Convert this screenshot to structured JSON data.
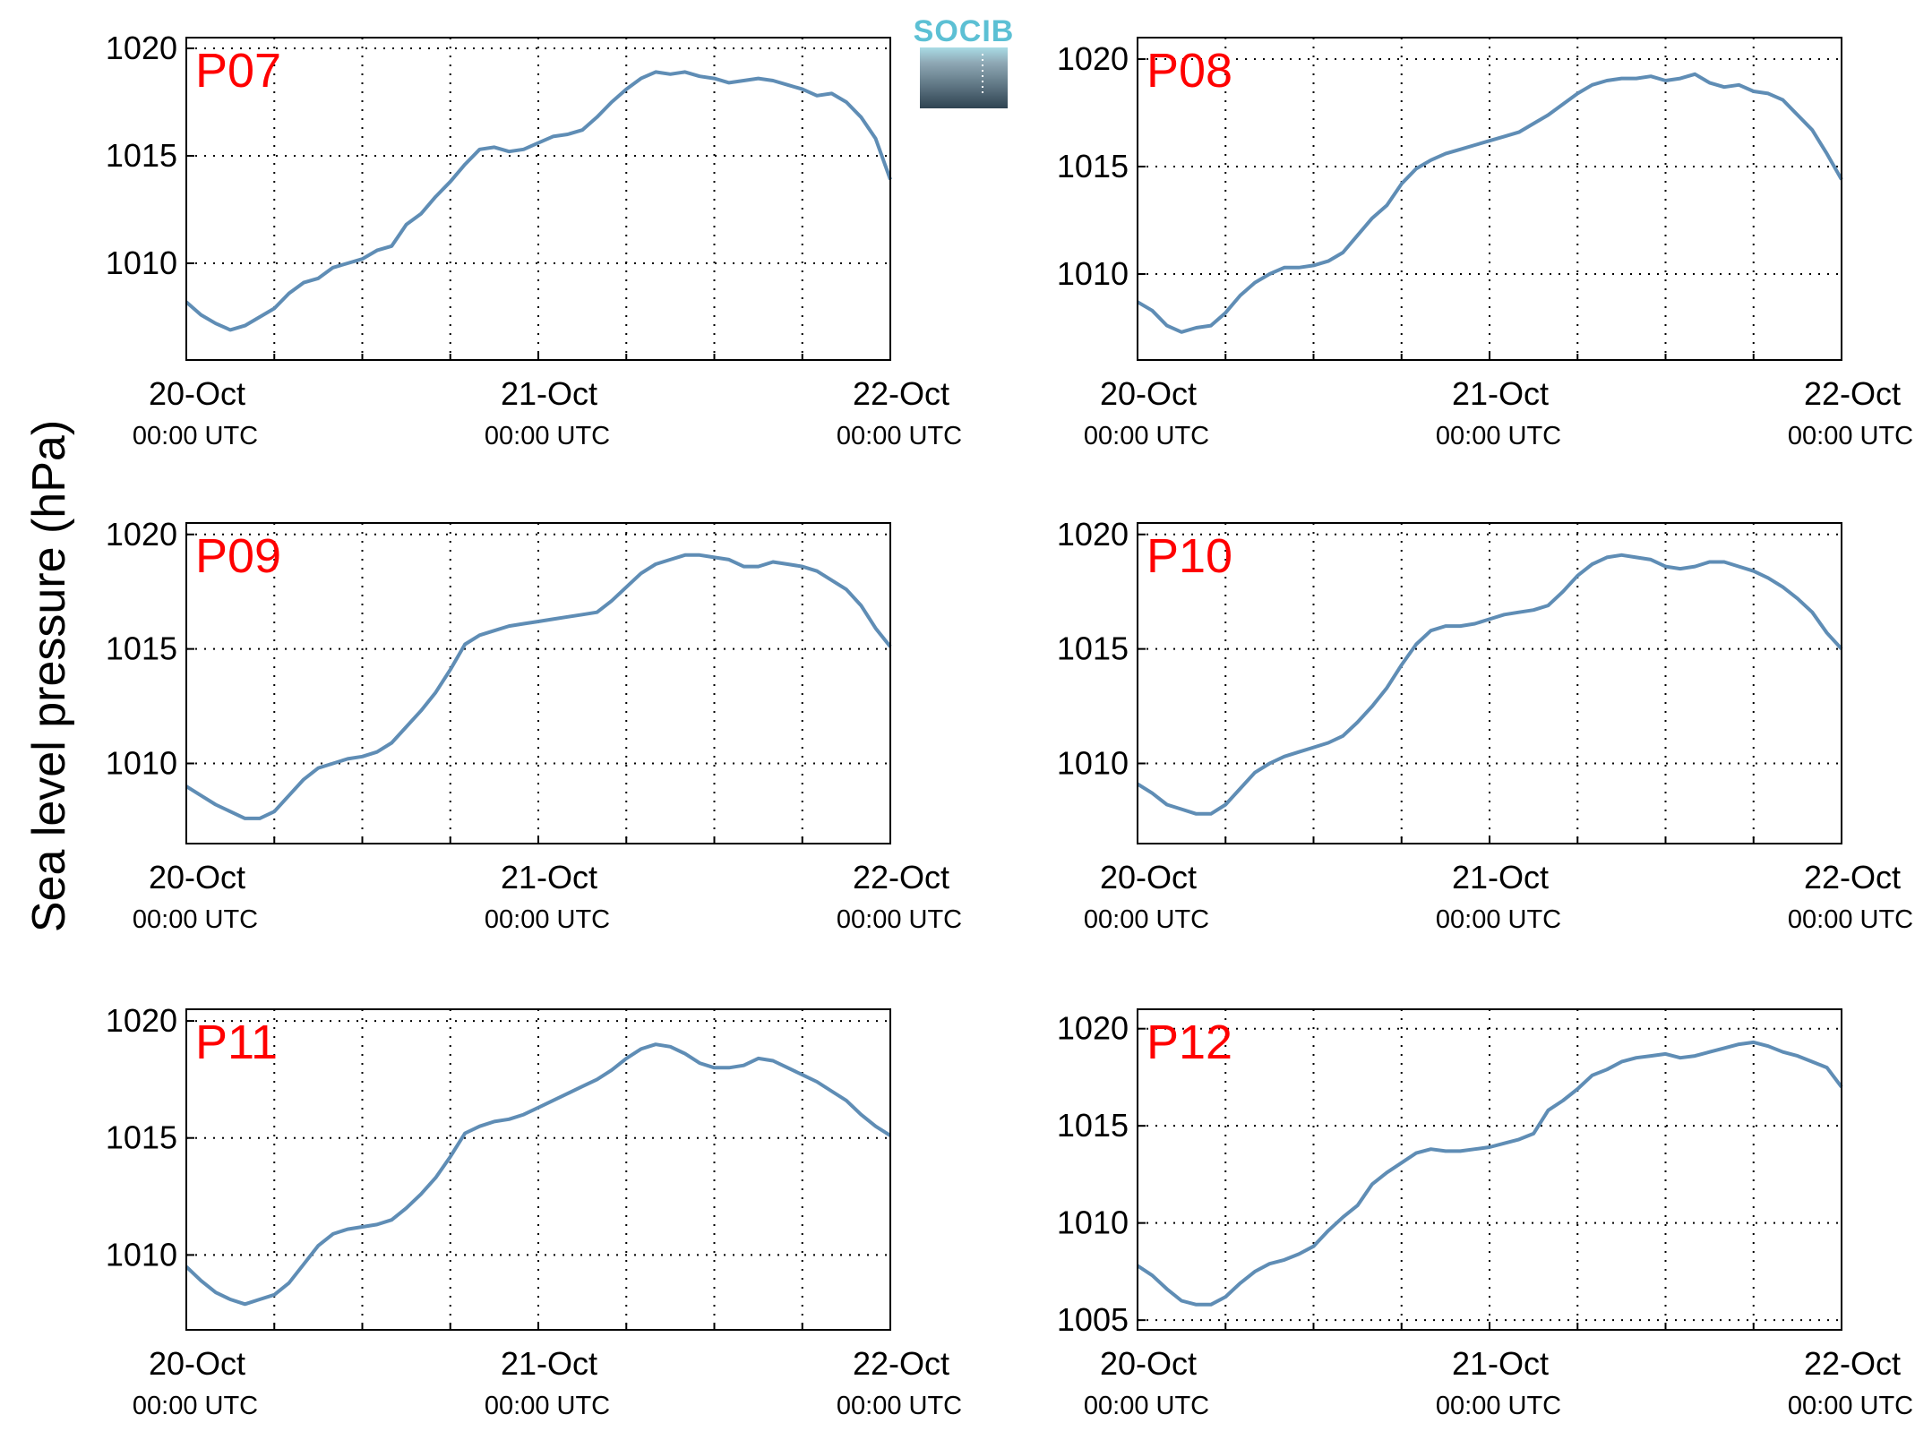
{
  "figure": {
    "ylabel": "Sea level pressure (hPa)",
    "logo_text": "SOCIB",
    "line_color": "#5f8db5",
    "label_color": "#ff0000"
  },
  "chart_data": [
    {
      "type": "line",
      "panel_label": "P07",
      "x_ticks": [
        {
          "date": "20-Oct",
          "time": "00:00 UTC"
        },
        {
          "date": "21-Oct",
          "time": "00:00 UTC"
        },
        {
          "date": "22-Oct",
          "time": "00:00 UTC"
        }
      ],
      "x_unit": "hours since 20-Oct 00:00 UTC",
      "xlim": [
        0,
        48
      ],
      "ylim": [
        1005.5,
        1020.5
      ],
      "yticks": [
        1010,
        1015,
        1020
      ],
      "grid": true,
      "series": [
        {
          "x": [
            0,
            1,
            2,
            3,
            4,
            5,
            6,
            7,
            8,
            9,
            10,
            11,
            12,
            13,
            14,
            15,
            16,
            17,
            18,
            19,
            20,
            21,
            22,
            23,
            24,
            25,
            26,
            27,
            28,
            29,
            30,
            31,
            32,
            33,
            34,
            35,
            36,
            37,
            38,
            39,
            40,
            41,
            42,
            43,
            44,
            45,
            46,
            47,
            48
          ],
          "values": [
            1008.2,
            1007.6,
            1007.2,
            1006.9,
            1007.1,
            1007.5,
            1007.9,
            1008.6,
            1009.1,
            1009.3,
            1009.8,
            1010.0,
            1010.2,
            1010.6,
            1010.8,
            1011.8,
            1012.3,
            1013.1,
            1013.8,
            1014.6,
            1015.3,
            1015.4,
            1015.2,
            1015.3,
            1015.6,
            1015.9,
            1016.0,
            1016.2,
            1016.8,
            1017.5,
            1018.1,
            1018.6,
            1018.9,
            1018.8,
            1018.9,
            1018.7,
            1018.6,
            1018.4,
            1018.5,
            1018.6,
            1018.5,
            1018.3,
            1018.1,
            1017.8,
            1017.9,
            1017.5,
            1016.8,
            1015.8,
            1013.9
          ]
        }
      ]
    },
    {
      "type": "line",
      "panel_label": "P08",
      "x_ticks": [
        {
          "date": "20-Oct",
          "time": "00:00 UTC"
        },
        {
          "date": "21-Oct",
          "time": "00:00 UTC"
        },
        {
          "date": "22-Oct",
          "time": "00:00 UTC"
        }
      ],
      "x_unit": "hours since 20-Oct 00:00 UTC",
      "xlim": [
        0,
        48
      ],
      "ylim": [
        1006,
        1021
      ],
      "yticks": [
        1010,
        1015,
        1020
      ],
      "grid": true,
      "series": [
        {
          "x": [
            0,
            1,
            2,
            3,
            4,
            5,
            6,
            7,
            8,
            9,
            10,
            11,
            12,
            13,
            14,
            15,
            16,
            17,
            18,
            19,
            20,
            21,
            22,
            23,
            24,
            25,
            26,
            27,
            28,
            29,
            30,
            31,
            32,
            33,
            34,
            35,
            36,
            37,
            38,
            39,
            40,
            41,
            42,
            43,
            44,
            45,
            46,
            47,
            48
          ],
          "values": [
            1008.7,
            1008.3,
            1007.6,
            1007.3,
            1007.5,
            1007.6,
            1008.2,
            1009.0,
            1009.6,
            1010.0,
            1010.3,
            1010.3,
            1010.4,
            1010.6,
            1011.0,
            1011.8,
            1012.6,
            1013.2,
            1014.2,
            1014.9,
            1015.3,
            1015.6,
            1015.8,
            1016.0,
            1016.2,
            1016.4,
            1016.6,
            1017.0,
            1017.4,
            1017.9,
            1018.4,
            1018.8,
            1019.0,
            1019.1,
            1019.1,
            1019.2,
            1019.0,
            1019.1,
            1019.3,
            1018.9,
            1018.7,
            1018.8,
            1018.5,
            1018.4,
            1018.1,
            1017.4,
            1016.7,
            1015.6,
            1014.4
          ]
        }
      ]
    },
    {
      "type": "line",
      "panel_label": "P09",
      "x_ticks": [
        {
          "date": "20-Oct",
          "time": "00:00 UTC"
        },
        {
          "date": "21-Oct",
          "time": "00:00 UTC"
        },
        {
          "date": "22-Oct",
          "time": "00:00 UTC"
        }
      ],
      "x_unit": "hours since 20-Oct 00:00 UTC",
      "xlim": [
        0,
        48
      ],
      "ylim": [
        1006.5,
        1020.5
      ],
      "yticks": [
        1010,
        1015,
        1020
      ],
      "grid": true,
      "series": [
        {
          "x": [
            0,
            1,
            2,
            3,
            4,
            5,
            6,
            7,
            8,
            9,
            10,
            11,
            12,
            13,
            14,
            15,
            16,
            17,
            18,
            19,
            20,
            21,
            22,
            23,
            24,
            25,
            26,
            27,
            28,
            29,
            30,
            31,
            32,
            33,
            34,
            35,
            36,
            37,
            38,
            39,
            40,
            41,
            42,
            43,
            44,
            45,
            46,
            47,
            48
          ],
          "values": [
            1009.0,
            1008.6,
            1008.2,
            1007.9,
            1007.6,
            1007.6,
            1007.9,
            1008.6,
            1009.3,
            1009.8,
            1010.0,
            1010.2,
            1010.3,
            1010.5,
            1010.9,
            1011.6,
            1012.3,
            1013.1,
            1014.1,
            1015.2,
            1015.6,
            1015.8,
            1016.0,
            1016.1,
            1016.2,
            1016.3,
            1016.4,
            1016.5,
            1016.6,
            1017.1,
            1017.7,
            1018.3,
            1018.7,
            1018.9,
            1019.1,
            1019.1,
            1019.0,
            1018.9,
            1018.6,
            1018.6,
            1018.8,
            1018.7,
            1018.6,
            1018.4,
            1018.0,
            1017.6,
            1016.9,
            1015.9,
            1015.1
          ]
        }
      ]
    },
    {
      "type": "line",
      "panel_label": "P10",
      "x_ticks": [
        {
          "date": "20-Oct",
          "time": "00:00 UTC"
        },
        {
          "date": "21-Oct",
          "time": "00:00 UTC"
        },
        {
          "date": "22-Oct",
          "time": "00:00 UTC"
        }
      ],
      "x_unit": "hours since 20-Oct 00:00 UTC",
      "xlim": [
        0,
        48
      ],
      "ylim": [
        1006.5,
        1020.5
      ],
      "yticks": [
        1010,
        1015,
        1020
      ],
      "grid": true,
      "series": [
        {
          "x": [
            0,
            1,
            2,
            3,
            4,
            5,
            6,
            7,
            8,
            9,
            10,
            11,
            12,
            13,
            14,
            15,
            16,
            17,
            18,
            19,
            20,
            21,
            22,
            23,
            24,
            25,
            26,
            27,
            28,
            29,
            30,
            31,
            32,
            33,
            34,
            35,
            36,
            37,
            38,
            39,
            40,
            41,
            42,
            43,
            44,
            45,
            46,
            47,
            48
          ],
          "values": [
            1009.1,
            1008.7,
            1008.2,
            1008.0,
            1007.8,
            1007.8,
            1008.2,
            1008.9,
            1009.6,
            1010.0,
            1010.3,
            1010.5,
            1010.7,
            1010.9,
            1011.2,
            1011.8,
            1012.5,
            1013.3,
            1014.3,
            1015.2,
            1015.8,
            1016.0,
            1016.0,
            1016.1,
            1016.3,
            1016.5,
            1016.6,
            1016.7,
            1016.9,
            1017.5,
            1018.2,
            1018.7,
            1019.0,
            1019.1,
            1019.0,
            1018.9,
            1018.6,
            1018.5,
            1018.6,
            1018.8,
            1018.8,
            1018.6,
            1018.4,
            1018.1,
            1017.7,
            1017.2,
            1016.6,
            1015.7,
            1015.0
          ]
        }
      ]
    },
    {
      "type": "line",
      "panel_label": "P11",
      "x_ticks": [
        {
          "date": "20-Oct",
          "time": "00:00 UTC"
        },
        {
          "date": "21-Oct",
          "time": "00:00 UTC"
        },
        {
          "date": "22-Oct",
          "time": "00:00 UTC"
        }
      ],
      "x_unit": "hours since 20-Oct 00:00 UTC",
      "xlim": [
        0,
        48
      ],
      "ylim": [
        1006.8,
        1020.5
      ],
      "yticks": [
        1010,
        1015,
        1020
      ],
      "grid": true,
      "series": [
        {
          "x": [
            0,
            1,
            2,
            3,
            4,
            5,
            6,
            7,
            8,
            9,
            10,
            11,
            12,
            13,
            14,
            15,
            16,
            17,
            18,
            19,
            20,
            21,
            22,
            23,
            24,
            25,
            26,
            27,
            28,
            29,
            30,
            31,
            32,
            33,
            34,
            35,
            36,
            37,
            38,
            39,
            40,
            41,
            42,
            43,
            44,
            45,
            46,
            47,
            48
          ],
          "values": [
            1009.5,
            1008.9,
            1008.4,
            1008.1,
            1007.9,
            1008.1,
            1008.3,
            1008.8,
            1009.6,
            1010.4,
            1010.9,
            1011.1,
            1011.2,
            1011.3,
            1011.5,
            1012.0,
            1012.6,
            1013.3,
            1014.2,
            1015.2,
            1015.5,
            1015.7,
            1015.8,
            1016.0,
            1016.3,
            1016.6,
            1016.9,
            1017.2,
            1017.5,
            1017.9,
            1018.4,
            1018.8,
            1019.0,
            1018.9,
            1018.6,
            1018.2,
            1018.0,
            1018.0,
            1018.1,
            1018.4,
            1018.3,
            1018.0,
            1017.7,
            1017.4,
            1017.0,
            1016.6,
            1016.0,
            1015.5,
            1015.1
          ]
        }
      ]
    },
    {
      "type": "line",
      "panel_label": "P12",
      "x_ticks": [
        {
          "date": "20-Oct",
          "time": "00:00 UTC"
        },
        {
          "date": "21-Oct",
          "time": "00:00 UTC"
        },
        {
          "date": "22-Oct",
          "time": "00:00 UTC"
        }
      ],
      "x_unit": "hours since 20-Oct 00:00 UTC",
      "xlim": [
        0,
        48
      ],
      "ylim": [
        1004.5,
        1021
      ],
      "yticks": [
        1005,
        1010,
        1015,
        1020
      ],
      "grid": true,
      "series": [
        {
          "x": [
            0,
            1,
            2,
            3,
            4,
            5,
            6,
            7,
            8,
            9,
            10,
            11,
            12,
            13,
            14,
            15,
            16,
            17,
            18,
            19,
            20,
            21,
            22,
            23,
            24,
            25,
            26,
            27,
            28,
            29,
            30,
            31,
            32,
            33,
            34,
            35,
            36,
            37,
            38,
            39,
            40,
            41,
            42,
            43,
            44,
            45,
            46,
            47,
            48
          ],
          "values": [
            1007.8,
            1007.3,
            1006.6,
            1006.0,
            1005.8,
            1005.8,
            1006.2,
            1006.9,
            1007.5,
            1007.9,
            1008.1,
            1008.4,
            1008.8,
            1009.6,
            1010.3,
            1010.9,
            1012.0,
            1012.6,
            1013.1,
            1013.6,
            1013.8,
            1013.7,
            1013.7,
            1013.8,
            1013.9,
            1014.1,
            1014.3,
            1014.6,
            1015.8,
            1016.3,
            1016.9,
            1017.6,
            1017.9,
            1018.3,
            1018.5,
            1018.6,
            1018.7,
            1018.5,
            1018.6,
            1018.8,
            1019.0,
            1019.2,
            1019.3,
            1019.1,
            1018.8,
            1018.6,
            1018.3,
            1018.0,
            1017.0
          ]
        }
      ]
    }
  ]
}
